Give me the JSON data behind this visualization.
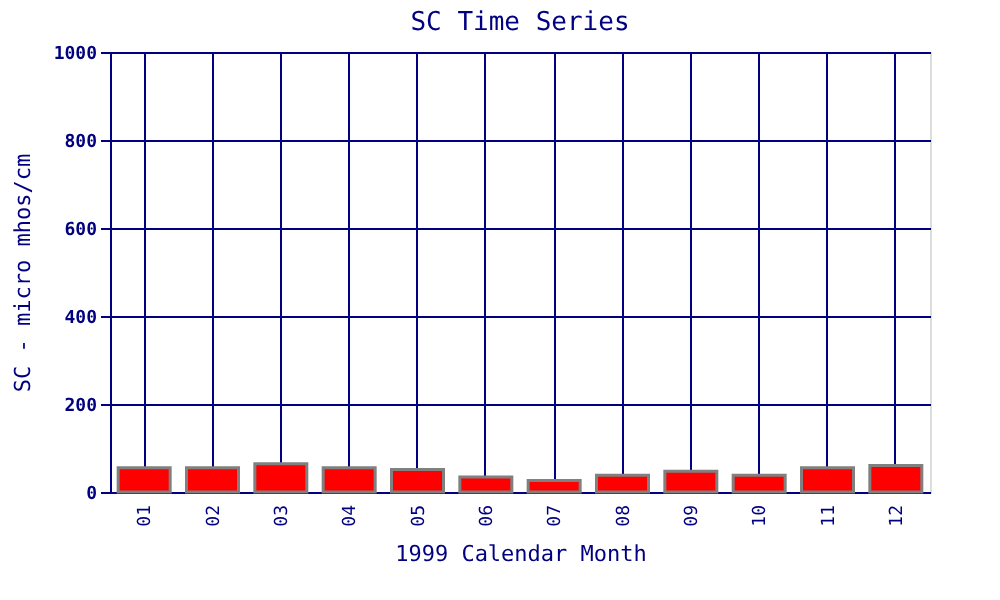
{
  "chart_data": {
    "type": "bar",
    "title": "SC Time Series",
    "xlabel": "1999 Calendar Month",
    "ylabel": "SC - micro mhos/cm",
    "categories": [
      "01",
      "02",
      "03",
      "04",
      "05",
      "06",
      "07",
      "08",
      "09",
      "10",
      "11",
      "12"
    ],
    "values": [
      55,
      55,
      64,
      55,
      51,
      34,
      26,
      38,
      47,
      38,
      55,
      60
    ],
    "color": "#ff0000",
    "ylim": [
      0,
      1000
    ],
    "yticks": [
      0,
      200,
      400,
      600,
      800,
      1000
    ],
    "grid": true
  }
}
